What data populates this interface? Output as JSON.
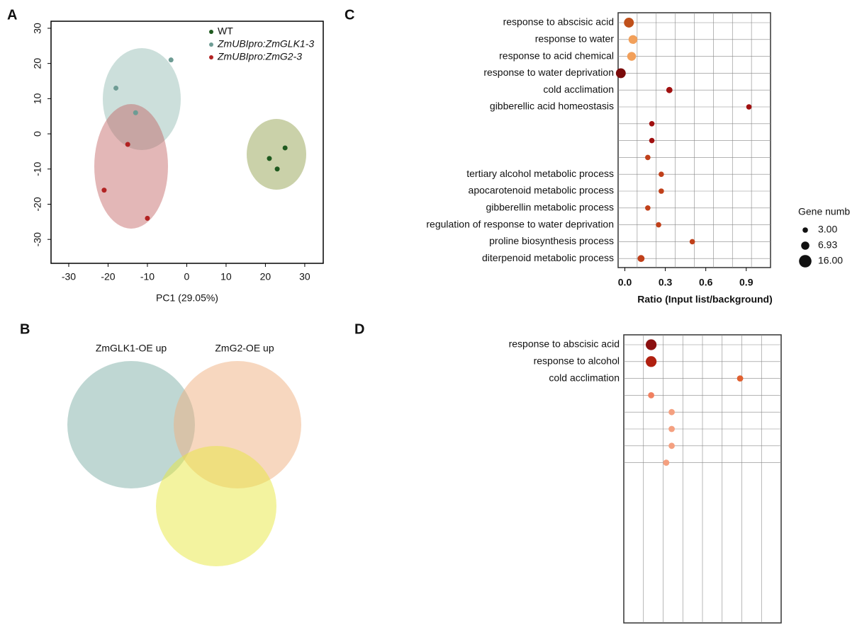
{
  "chart_data": [
    {
      "type": "scatter",
      "panel": "A",
      "xlabel": "PC1 (29.05%)",
      "xlim": [
        -34.5,
        34.7
      ],
      "ylim": [
        -36.8,
        32
      ],
      "xticks": [
        -30,
        -20,
        -10,
        0,
        10,
        20,
        30
      ],
      "yticks": [
        -30,
        -20,
        -10,
        0,
        10,
        20,
        30
      ],
      "series": [
        {
          "name": "WT",
          "color": "#1f5a1f",
          "x": [
            21,
            23,
            25
          ],
          "values": [
            -7,
            -10,
            -4
          ]
        },
        {
          "name": "ZmUBIpro:ZmGLK1-3",
          "color": "#6e9c94",
          "x": [
            -4,
            -18,
            -13
          ],
          "values": [
            21,
            13,
            6
          ]
        },
        {
          "name": "ZmUBIpro:ZmG2-3",
          "color": "#b22222",
          "x": [
            -21,
            -10,
            -15
          ],
          "values": [
            -16,
            -24,
            -3
          ]
        }
      ]
    },
    {
      "type": "venn",
      "panel": "B",
      "sets": [
        "ZmGLK1-OE up",
        "ZmG2-OE up"
      ]
    },
    {
      "type": "dot",
      "panel": "C",
      "xlabel": "Ratio (Input list/background)",
      "size_title": "Gene numb",
      "xlim": [
        -0.05,
        1.08
      ],
      "xticks": [
        {
          "value": 0,
          "label": "0.0"
        },
        0.3,
        0.6,
        0.9
      ],
      "size_ticks": [
        {
          "value": 3,
          "label": "3.00"
        },
        {
          "value": 6.93,
          "label": "6.93"
        },
        {
          "value": 16,
          "label": "16.00"
        }
      ],
      "categories": [
        "response to abscisic acid",
        "response to water",
        "response to acid chemical",
        "response to water deprivation",
        "cold acclimation",
        "gibberellic acid homeostasis",
        null,
        null,
        null,
        "tertiary alcohol metabolic process",
        "apocarotenoid metabolic process",
        "gibberellin metabolic process",
        "regulation of response to water deprivation",
        "proline biosynthesis process",
        "diterpenoid metabolic process"
      ],
      "values": [
        0.03,
        0.06,
        0.05,
        -0.03,
        0.33,
        0.92,
        0.2,
        0.2,
        0.17,
        0.27,
        0.27,
        0.17,
        0.25,
        0.5,
        0.12
      ],
      "sizes": [
        10,
        8,
        8,
        10,
        4,
        3,
        3,
        3,
        3,
        3,
        3,
        3,
        3,
        3,
        5
      ],
      "colors": [
        "#c0501a",
        "#f2a05a",
        "#f2a05a",
        "#7a0a0a",
        "#a01010",
        "#a01010",
        "#a01010",
        "#a01010",
        "#c0401a",
        "#c0401a",
        "#c0401a",
        "#c0401a",
        "#c0401a",
        "#c0401a",
        "#c0401a"
      ]
    },
    {
      "type": "dot",
      "panel": "D",
      "xlim": [
        -0.05,
        1.1
      ],
      "categories": [
        "response to abscisic acid",
        "response to alcohol",
        "cold acclimation",
        null,
        null,
        null,
        null,
        null
      ],
      "values": [
        0.15,
        0.15,
        0.8,
        0.15,
        0.3,
        0.3,
        0.3,
        0.26
      ],
      "sizes": [
        12,
        12,
        4,
        4,
        4,
        4,
        4,
        4
      ],
      "colors": [
        "#8b1010",
        "#b02010",
        "#e06030",
        "#f08060",
        "#f4a080",
        "#f4a080",
        "#f4a080",
        "#f4a080"
      ]
    }
  ]
}
